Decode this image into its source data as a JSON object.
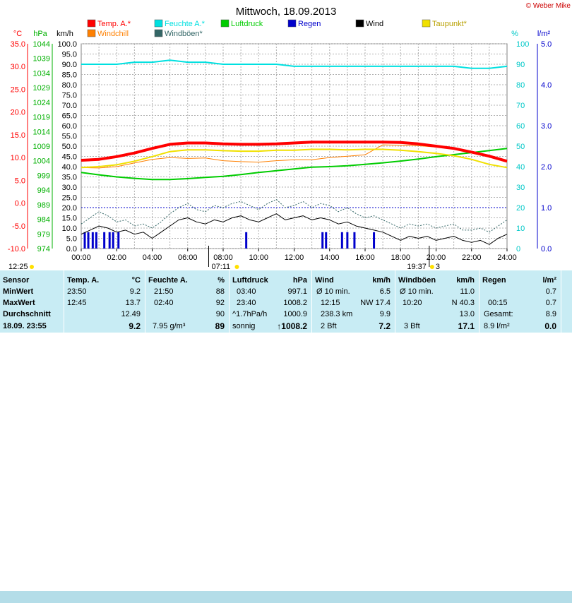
{
  "title": "Mittwoch, 18.09.2013",
  "copyright": "© Weber Mike",
  "legend": [
    {
      "label": "Temp. A.*",
      "color": "#ff0000"
    },
    {
      "label": "Feuchte A.*",
      "color": "#00e0e0"
    },
    {
      "label": "Luftdruck",
      "color": "#00cc00"
    },
    {
      "label": "Regen",
      "color": "#0000cc"
    },
    {
      "label": "Wind",
      "color": "#000000"
    },
    {
      "label": "Taupunkt*",
      "color": "#f0e000"
    },
    {
      "label": "Windchill",
      "color": "#ff8000"
    },
    {
      "label": "Windböen*",
      "color": "#336666"
    }
  ],
  "axis_units": {
    "temp": "°C",
    "pressure": "hPa",
    "wind": "km/h",
    "humidity": "%",
    "rain": "l/m²"
  },
  "time_markers": {
    "sunrise": "07:11",
    "sunset": "19:37",
    "sunset_suffix": "3"
  },
  "corner_time": "12:25",
  "chart_data": {
    "type": "line",
    "x_ticks": [
      "00:00",
      "02:00",
      "04:00",
      "06:00",
      "08:00",
      "10:00",
      "12:00",
      "14:00",
      "16:00",
      "18:00",
      "20:00",
      "22:00",
      "24:00"
    ],
    "xlim": [
      0,
      24
    ],
    "axes": {
      "temp": {
        "label": "°C",
        "ticks": [
          "35.0",
          "30.0",
          "25.0",
          "20.0",
          "15.0",
          "10.0",
          "5.0",
          "0.0",
          "-5.0",
          "-10.0"
        ],
        "range": [
          -10,
          35
        ]
      },
      "pressure": {
        "label": "hPa",
        "ticks": [
          "1044",
          "1039",
          "1034",
          "1029",
          "1024",
          "1019",
          "1014",
          "1009",
          "1004",
          "999",
          "994",
          "989",
          "984",
          "979",
          "974"
        ],
        "range": [
          974,
          1044
        ]
      },
      "wind": {
        "label": "km/h",
        "ticks": [
          "100.0",
          "95.0",
          "90.0",
          "85.0",
          "80.0",
          "75.0",
          "70.0",
          "65.0",
          "60.0",
          "55.0",
          "50.0",
          "45.0",
          "40.0",
          "35.0",
          "30.0",
          "25.0",
          "20.0",
          "15.0",
          "10.0",
          "5.0",
          "0.0"
        ],
        "range": [
          0,
          100
        ]
      },
      "humidity": {
        "label": "%",
        "ticks": [
          "100",
          "90",
          "80",
          "70",
          "60",
          "50",
          "40",
          "30",
          "20",
          "10",
          "0"
        ],
        "range": [
          0,
          100
        ]
      },
      "rain": {
        "label": "l/m²",
        "ticks": [
          "5.0",
          "4.0",
          "3.0",
          "2.0",
          "1.0",
          "0.0"
        ],
        "range": [
          0,
          5
        ]
      }
    },
    "series": [
      {
        "name": "Temp. A.*",
        "axis": "temp",
        "color": "#ff0000",
        "width": 4,
        "x": [
          0,
          1,
          2,
          3,
          4,
          5,
          6,
          7,
          8,
          9,
          10,
          11,
          12,
          13,
          14,
          15,
          16,
          17,
          18,
          19,
          20,
          21,
          22,
          23,
          24
        ],
        "y": [
          9.4,
          9.6,
          10.2,
          11.0,
          12.0,
          12.9,
          13.2,
          13.2,
          13.0,
          12.9,
          12.9,
          13.0,
          13.2,
          13.4,
          13.4,
          13.4,
          13.4,
          13.4,
          13.3,
          13.0,
          12.5,
          12.0,
          11.2,
          10.3,
          9.2
        ]
      },
      {
        "name": "Feuchte A.*",
        "axis": "humidity",
        "color": "#00e0e0",
        "width": 2,
        "x": [
          0,
          1,
          2,
          3,
          4,
          5,
          6,
          7,
          8,
          9,
          10,
          11,
          12,
          13,
          14,
          15,
          16,
          17,
          18,
          19,
          20,
          21,
          22,
          23,
          24
        ],
        "y": [
          90,
          90,
          90,
          91,
          91,
          92,
          91,
          91,
          90,
          90,
          90,
          90,
          89,
          89,
          89,
          89,
          89,
          89,
          89,
          89,
          89,
          89,
          88,
          88,
          89
        ]
      },
      {
        "name": "Luftdruck",
        "axis": "pressure",
        "color": "#00cc00",
        "width": 2,
        "x": [
          0,
          1,
          2,
          3,
          4,
          5,
          6,
          7,
          8,
          9,
          10,
          11,
          12,
          13,
          14,
          15,
          16,
          17,
          18,
          19,
          20,
          21,
          22,
          23,
          24
        ],
        "y": [
          1000.0,
          999.2,
          998.5,
          998.0,
          997.6,
          997.6,
          997.9,
          998.3,
          998.7,
          999.3,
          1000.0,
          1000.6,
          1001.2,
          1001.8,
          1002.0,
          1002.3,
          1002.8,
          1003.3,
          1003.9,
          1004.6,
          1005.4,
          1006.1,
          1006.8,
          1007.5,
          1008.2
        ]
      },
      {
        "name": "Taupunkt*",
        "axis": "temp",
        "color": "#f0e000",
        "width": 2,
        "x": [
          0,
          1,
          2,
          3,
          4,
          5,
          6,
          7,
          8,
          9,
          10,
          11,
          12,
          13,
          14,
          15,
          16,
          17,
          18,
          19,
          20,
          21,
          22,
          23,
          24
        ],
        "y": [
          7.8,
          8.0,
          8.4,
          9.2,
          10.2,
          11.3,
          11.7,
          11.7,
          11.5,
          11.4,
          11.4,
          11.6,
          11.6,
          11.8,
          11.8,
          11.7,
          11.8,
          11.8,
          11.6,
          11.3,
          10.9,
          10.4,
          9.6,
          8.5,
          7.8
        ]
      },
      {
        "name": "Windchill",
        "axis": "temp",
        "color": "#ff8000",
        "width": 1,
        "x": [
          0,
          1,
          2,
          3,
          4,
          5,
          6,
          7,
          8,
          9,
          10,
          11,
          12,
          13,
          14,
          15,
          16,
          17,
          18,
          19,
          20,
          21,
          22,
          23,
          24
        ],
        "y": [
          7.8,
          7.7,
          8.0,
          8.8,
          9.6,
          10.0,
          9.8,
          9.9,
          9.3,
          9.1,
          9.0,
          9.3,
          9.5,
          9.5,
          10.0,
          10.3,
          10.6,
          12.8,
          12.7,
          12.6,
          12.3,
          11.9,
          11.0,
          10.1,
          9.0
        ]
      },
      {
        "name": "Windböen*",
        "axis": "wind",
        "color": "#336666",
        "width": 1,
        "dashed": true,
        "x": [
          0,
          0.5,
          1,
          1.5,
          2,
          2.5,
          3,
          3.5,
          4,
          4.5,
          5,
          5.5,
          6,
          6.5,
          7,
          7.5,
          8,
          8.5,
          9,
          9.5,
          10,
          10.5,
          11,
          11.5,
          12,
          12.5,
          13,
          13.5,
          14,
          14.5,
          15,
          15.5,
          16,
          16.5,
          17,
          17.5,
          18,
          18.5,
          19,
          19.5,
          20,
          20.5,
          21,
          21.5,
          22,
          22.5,
          23,
          23.5,
          24
        ],
        "y": [
          12,
          15,
          18,
          16,
          13,
          14,
          11,
          12,
          10,
          13,
          17,
          20,
          22,
          19,
          18,
          21,
          20,
          22,
          23,
          21,
          19,
          22,
          24,
          20,
          21,
          23,
          20,
          22,
          21,
          18,
          20,
          17,
          15,
          16,
          14,
          12,
          10,
          12,
          11,
          12,
          10,
          11,
          12,
          9,
          9,
          10,
          8,
          11,
          14
        ]
      },
      {
        "name": "Wind",
        "axis": "wind",
        "color": "#000000",
        "width": 1,
        "x": [
          0,
          0.5,
          1,
          1.5,
          2,
          2.5,
          3,
          3.5,
          4,
          4.5,
          5,
          5.5,
          6,
          6.5,
          7,
          7.5,
          8,
          8.5,
          9,
          9.5,
          10,
          10.5,
          11,
          11.5,
          12,
          12.5,
          13,
          13.5,
          14,
          14.5,
          15,
          15.5,
          16,
          16.5,
          17,
          17.5,
          18,
          18.5,
          19,
          19.5,
          20,
          20.5,
          21,
          21.5,
          22,
          22.5,
          23,
          23.5,
          24
        ],
        "y": [
          7,
          9,
          11,
          10,
          8,
          9,
          7,
          8,
          5,
          8,
          11,
          14,
          15,
          13,
          12,
          14,
          13,
          15,
          16,
          14,
          13,
          15,
          17,
          14,
          15,
          16,
          14,
          15,
          14,
          12,
          13,
          11,
          10,
          9,
          8,
          6,
          4,
          6,
          5,
          6,
          4,
          5,
          6,
          4,
          3,
          4,
          2,
          5,
          7
        ]
      }
    ],
    "rain_bars": {
      "axis": "wind",
      "color": "#0000cc",
      "x": [
        0.2,
        0.4,
        0.65,
        0.85,
        1.3,
        1.6,
        1.8,
        2.1,
        9.3,
        13.6,
        13.8,
        14.7,
        15.0,
        15.4,
        16.5
      ],
      "y": [
        8,
        8,
        8,
        8,
        8,
        8,
        8,
        8,
        8,
        8,
        8,
        8,
        8,
        8,
        8
      ]
    },
    "dotted_line": {
      "axis": "wind",
      "value": 20,
      "color": "#0000cc"
    }
  },
  "stats": {
    "sensor": {
      "header": "Sensor",
      "rows": [
        "MinWert",
        "MaxWert",
        "Durchschnitt"
      ],
      "last": "18.09.  23:55"
    },
    "temp": {
      "header": "Temp. A.",
      "unit": "°C",
      "rows": [
        [
          "23:50",
          "9.2"
        ],
        [
          "12:45",
          "13.7"
        ],
        [
          "",
          "12.49"
        ]
      ],
      "last": "9.2"
    },
    "humidity": {
      "header": "Feuchte A.",
      "unit": "%",
      "rows": [
        [
          "21:50",
          "88"
        ],
        [
          "02:40",
          "92"
        ],
        [
          "",
          "90"
        ]
      ],
      "last_extra": "7.95 g/m³",
      "last": "89"
    },
    "pressure": {
      "header": "Luftdruck",
      "unit": "hPa",
      "rows": [
        [
          "03:40",
          "997.1"
        ],
        [
          "23:40",
          "1008.2"
        ],
        [
          "^1.7hPa/h",
          "1000.9"
        ]
      ],
      "last_extra": "sonnig",
      "last": "↑1008.2"
    },
    "wind": {
      "header": "Wind",
      "unit": "km/h",
      "rows": [
        [
          "Ø 10 min.",
          "6.5"
        ],
        [
          "12:15",
          "NW 17.4"
        ],
        [
          "238.3 km",
          "9.9"
        ]
      ],
      "last_extra": "2 Bft",
      "last": "7.2"
    },
    "gusts": {
      "header": "Windböen",
      "unit": "km/h",
      "rows": [
        [
          "Ø 10 min.",
          "11.0"
        ],
        [
          "10:20",
          "N 40.3"
        ],
        [
          "",
          "13.0"
        ]
      ],
      "last_extra": "3 Bft",
      "last": "17.1"
    },
    "rain": {
      "header": "Regen",
      "unit": "l/m²",
      "rows": [
        [
          "",
          "0.7"
        ],
        [
          "00:15",
          "0.7"
        ],
        [
          "Gesamt:",
          "8.9"
        ]
      ],
      "last_extra": "8.9 l/m²",
      "last": "0.0"
    }
  }
}
